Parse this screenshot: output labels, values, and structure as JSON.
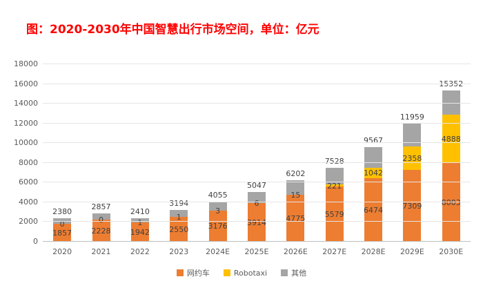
{
  "title": "图：2020-2030年中国智慧出行市场空间，单位：亿元",
  "chart_data": {
    "type": "bar",
    "stacked": true,
    "title": "图：2020-2030年中国智慧出行市场空间，单位：亿元",
    "unit": "亿元",
    "categories": [
      "2020",
      "2021",
      "2022",
      "2023",
      "2024E",
      "2025E",
      "2026E",
      "2027E",
      "2028E",
      "2029E",
      "2030E"
    ],
    "series": [
      {
        "name": "网约车",
        "color": "#ED7D31",
        "labels_shown": true,
        "values": [
          1857,
          2228,
          1942,
          2550,
          3176,
          3914,
          4775,
          5579,
          6474,
          7309,
          8003
        ]
      },
      {
        "name": "Robotaxi",
        "color": "#FFC000",
        "labels_shown": true,
        "values": [
          0,
          0,
          1,
          1,
          3,
          6,
          15,
          221,
          1042,
          2358,
          4888
        ]
      },
      {
        "name": "其他",
        "color": "#A5A5A5",
        "labels_shown": false,
        "values": [
          523,
          629,
          467,
          643,
          876,
          1127,
          1412,
          1728,
          2051,
          2292,
          2461
        ]
      }
    ],
    "totals": [
      2380,
      2857,
      2410,
      3194,
      4055,
      5047,
      6202,
      7528,
      9567,
      11959,
      15352
    ],
    "ylim": [
      0,
      18000
    ],
    "yticks": [
      0,
      2000,
      4000,
      6000,
      8000,
      10000,
      12000,
      14000,
      16000,
      18000
    ],
    "grid": true,
    "legend": [
      "网约车",
      "Robotaxi",
      "其他"
    ],
    "legend_position": "bottom"
  }
}
